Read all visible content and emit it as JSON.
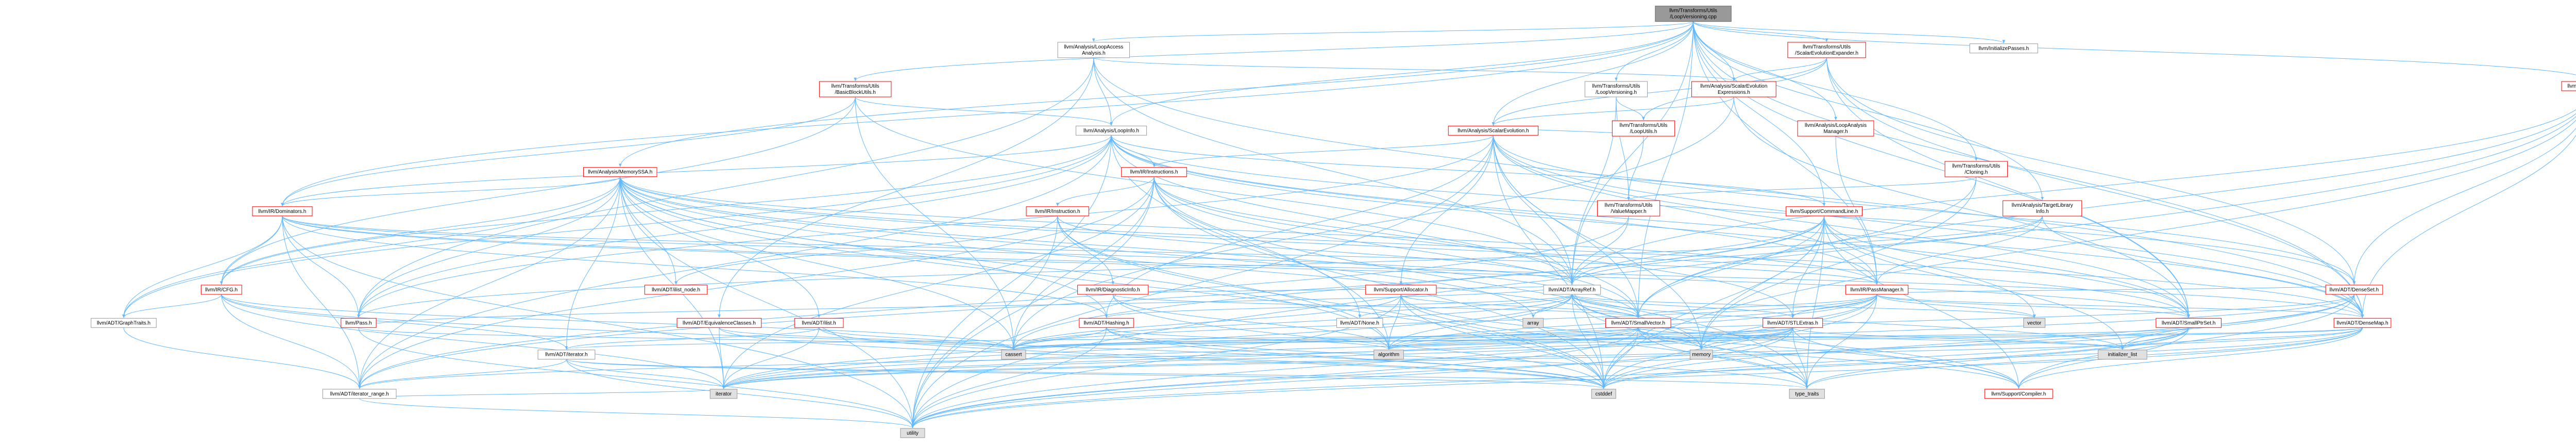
{
  "diagram": {
    "colors": {
      "root_fill": "#999999",
      "root_border": "#666666",
      "red_border": "#ff0000",
      "gray_border": "#999999",
      "node_fill": "#ffffff",
      "leaf_fill": "#e0e0e0",
      "edge_color": "#63b8ff"
    },
    "nodes": [
      {
        "id": "root",
        "lines": [
          "llvm/Transforms/Utils",
          "/LoopVersioning.cpp"
        ],
        "style": "root"
      },
      {
        "id": "laa",
        "lines": [
          "llvm/Analysis/LoopAccess",
          "Analysis.h"
        ],
        "style": "gray"
      },
      {
        "id": "bbu",
        "lines": [
          "llvm/Transforms/Utils",
          "/BasicBlockUtils.h"
        ],
        "style": "red"
      },
      {
        "id": "ms",
        "lines": [
          "llvm/Analysis/MemorySSA.h"
        ],
        "style": "red"
      },
      {
        "id": "li",
        "lines": [
          "llvm/Analysis/LoopInfo.h"
        ],
        "style": "gray"
      },
      {
        "id": "se",
        "lines": [
          "llvm/Analysis/ScalarEvolution.h"
        ],
        "style": "red"
      },
      {
        "id": "see",
        "lines": [
          "llvm/Analysis/ScalarEvolution",
          "Expressions.h"
        ],
        "style": "red"
      },
      {
        "id": "lam",
        "lines": [
          "llvm/Analysis/LoopAnalysis",
          "Manager.h"
        ],
        "style": "red"
      },
      {
        "id": "lv",
        "lines": [
          "llvm/Transforms/Utils",
          "/LoopVersioning.h"
        ],
        "style": "gray"
      },
      {
        "id": "lu",
        "lines": [
          "llvm/Transforms/Utils",
          "/LoopUtils.h"
        ],
        "style": "red"
      },
      {
        "id": "sexp",
        "lines": [
          "llvm/Transforms/Utils",
          "/ScalarEvolutionExpander.h"
        ],
        "style": "red"
      },
      {
        "id": "ip",
        "lines": [
          "llvm/InitializePasses.h"
        ],
        "style": "gray"
      },
      {
        "id": "instrs",
        "lines": [
          "llvm/IR/Instructions.h"
        ],
        "style": "red"
      },
      {
        "id": "instr",
        "lines": [
          "llvm/IR/Instruction.h"
        ],
        "style": "red"
      },
      {
        "id": "clon",
        "lines": [
          "llvm/Transforms/Utils",
          "/Cloning.h"
        ],
        "style": "red"
      },
      {
        "id": "tli",
        "lines": [
          "llvm/Analysis/TargetLibrary",
          "Info.h"
        ],
        "style": "red"
      },
      {
        "id": "mdb",
        "lines": [
          "llvm/IR/MDBuilder.h"
        ],
        "style": "red"
      },
      {
        "id": "dom",
        "lines": [
          "llvm/IR/Dominators.h"
        ],
        "style": "red"
      },
      {
        "id": "cfg",
        "lines": [
          "llvm/IR/CFG.h"
        ],
        "style": "red"
      },
      {
        "id": "gt",
        "lines": [
          "llvm/ADT/GraphTraits.h"
        ],
        "style": "gray"
      },
      {
        "id": "ilnode",
        "lines": [
          "llvm/ADT/ilist_node.h"
        ],
        "style": "red"
      },
      {
        "id": "di",
        "lines": [
          "llvm/IR/DiagnosticInfo.h"
        ],
        "style": "red"
      },
      {
        "id": "vm",
        "lines": [
          "llvm/Transforms/Utils",
          "/ValueMapper.h"
        ],
        "style": "red"
      },
      {
        "id": "cl",
        "lines": [
          "llvm/Support/CommandLine.h"
        ],
        "style": "red"
      },
      {
        "id": "alloc",
        "lines": [
          "llvm/Support/Allocator.h"
        ],
        "style": "red"
      },
      {
        "id": "ar",
        "lines": [
          "llvm/ADT/ArrayRef.h"
        ],
        "style": "gray"
      },
      {
        "id": "pm",
        "lines": [
          "llvm/IR/PassManager.h"
        ],
        "style": "red"
      },
      {
        "id": "ds",
        "lines": [
          "llvm/ADT/DenseSet.h"
        ],
        "style": "red"
      },
      {
        "id": "pass",
        "lines": [
          "llvm/Pass.h"
        ],
        "style": "red"
      },
      {
        "id": "eqc",
        "lines": [
          "llvm/ADT/EquivalenceClasses.h"
        ],
        "style": "red"
      },
      {
        "id": "ilist",
        "lines": [
          "llvm/ADT/ilist.h"
        ],
        "style": "red"
      },
      {
        "id": "hash",
        "lines": [
          "llvm/ADT/Hashing.h"
        ],
        "style": "red"
      },
      {
        "id": "none",
        "lines": [
          "llvm/ADT/None.h"
        ],
        "style": "gray"
      },
      {
        "id": "array",
        "lines": [
          "array"
        ],
        "style": "leaf"
      },
      {
        "id": "sv",
        "lines": [
          "llvm/ADT/SmallVector.h"
        ],
        "style": "red"
      },
      {
        "id": "stl",
        "lines": [
          "llvm/ADT/STLExtras.h"
        ],
        "style": "red"
      },
      {
        "id": "vector",
        "lines": [
          "vector"
        ],
        "style": "leaf"
      },
      {
        "id": "sps",
        "lines": [
          "llvm/ADT/SmallPtrSet.h"
        ],
        "style": "red"
      },
      {
        "id": "dm",
        "lines": [
          "llvm/ADT/DenseMap.h"
        ],
        "style": "red"
      },
      {
        "id": "iter",
        "lines": [
          "llvm/ADT/iterator.h"
        ],
        "style": "gray"
      },
      {
        "id": "cassert",
        "lines": [
          "cassert"
        ],
        "style": "leaf"
      },
      {
        "id": "algo",
        "lines": [
          "algorithm"
        ],
        "style": "leaf"
      },
      {
        "id": "memory",
        "lines": [
          "memory"
        ],
        "style": "leaf"
      },
      {
        "id": "initl",
        "lines": [
          "initializer_list"
        ],
        "style": "leaf"
      },
      {
        "id": "comp",
        "lines": [
          "llvm/Support/Compiler.h"
        ],
        "style": "red"
      },
      {
        "id": "ir",
        "lines": [
          "llvm/ADT/iterator_range.h"
        ],
        "style": "gray"
      },
      {
        "id": "iterator",
        "lines": [
          "iterator"
        ],
        "style": "leaf"
      },
      {
        "id": "cstddef",
        "lines": [
          "cstddef"
        ],
        "style": "leaf"
      },
      {
        "id": "tt",
        "lines": [
          "type_traits"
        ],
        "style": "leaf"
      },
      {
        "id": "utility",
        "lines": [
          "utility"
        ],
        "style": "leaf"
      }
    ],
    "edges": [
      [
        "root",
        "laa"
      ],
      [
        "root",
        "bbu"
      ],
      [
        "root",
        "ms"
      ],
      [
        "root",
        "li"
      ],
      [
        "root",
        "se"
      ],
      [
        "root",
        "see"
      ],
      [
        "root",
        "lam"
      ],
      [
        "root",
        "lv"
      ],
      [
        "root",
        "sexp"
      ],
      [
        "root",
        "ip"
      ],
      [
        "root",
        "clon"
      ],
      [
        "root",
        "tli"
      ],
      [
        "root",
        "mdb"
      ],
      [
        "root",
        "dom"
      ],
      [
        "root",
        "pm"
      ],
      [
        "root",
        "cl"
      ],
      [
        "root",
        "ar"
      ],
      [
        "root",
        "sv"
      ],
      [
        "root",
        "sps"
      ],
      [
        "root",
        "dm"
      ],
      [
        "laa",
        "ar"
      ],
      [
        "laa",
        "li"
      ],
      [
        "laa",
        "see"
      ],
      [
        "laa",
        "pass"
      ],
      [
        "laa",
        "dm"
      ],
      [
        "laa",
        "eqc"
      ],
      [
        "bbu",
        "li"
      ],
      [
        "bbu",
        "cfg"
      ],
      [
        "bbu",
        "dom"
      ],
      [
        "bbu",
        "ar"
      ],
      [
        "bbu",
        "cassert"
      ],
      [
        "lv",
        "lu"
      ],
      [
        "lv",
        "vm"
      ],
      [
        "lv",
        "ar"
      ],
      [
        "lu",
        "se"
      ],
      [
        "lu",
        "vm"
      ],
      [
        "sexp",
        "see"
      ],
      [
        "sexp",
        "se"
      ],
      [
        "sexp",
        "dm"
      ],
      [
        "sexp",
        "sps"
      ],
      [
        "sexp",
        "ds"
      ],
      [
        "sexp",
        "lu"
      ],
      [
        "see",
        "se"
      ],
      [
        "see",
        "sps"
      ],
      [
        "see",
        "cassert"
      ],
      [
        "lam",
        "pm"
      ],
      [
        "li",
        "instrs"
      ],
      [
        "li",
        "pass"
      ],
      [
        "li",
        "dom"
      ],
      [
        "li",
        "cfg"
      ],
      [
        "li",
        "pm"
      ],
      [
        "li",
        "ds"
      ],
      [
        "li",
        "dm"
      ],
      [
        "li",
        "sps"
      ],
      [
        "li",
        "sv"
      ],
      [
        "li",
        "cl"
      ],
      [
        "li",
        "algo"
      ],
      [
        "li",
        "utility"
      ],
      [
        "li",
        "gt"
      ],
      [
        "li",
        "ir"
      ],
      [
        "se",
        "instrs"
      ],
      [
        "se",
        "pm"
      ],
      [
        "se",
        "pass"
      ],
      [
        "se",
        "alloc"
      ],
      [
        "se",
        "ds"
      ],
      [
        "se",
        "dm"
      ],
      [
        "se",
        "sps"
      ],
      [
        "se",
        "sv"
      ],
      [
        "se",
        "ar"
      ],
      [
        "se",
        "hash"
      ],
      [
        "se",
        "memory"
      ],
      [
        "se",
        "cstddef"
      ],
      [
        "se",
        "utility"
      ],
      [
        "ms",
        "dom"
      ],
      [
        "ms",
        "cfg"
      ],
      [
        "ms",
        "pm"
      ],
      [
        "ms",
        "pass"
      ],
      [
        "ms",
        "ilist"
      ],
      [
        "ms",
        "ilnode"
      ],
      [
        "ms",
        "iter"
      ],
      [
        "ms",
        "ir"
      ],
      [
        "ms",
        "gt"
      ],
      [
        "ms",
        "sps"
      ],
      [
        "ms",
        "sv"
      ],
      [
        "ms",
        "dm"
      ],
      [
        "ms",
        "hash"
      ],
      [
        "ms",
        "cassert"
      ],
      [
        "ms",
        "cstddef"
      ],
      [
        "ms",
        "memory"
      ],
      [
        "ms",
        "utility"
      ],
      [
        "ms",
        "algo"
      ],
      [
        "ms",
        "array"
      ],
      [
        "ms",
        "iterator"
      ],
      [
        "instrs",
        "instr"
      ],
      [
        "instrs",
        "ar"
      ],
      [
        "instrs",
        "sv"
      ],
      [
        "instrs",
        "stl"
      ],
      [
        "instrs",
        "ir"
      ],
      [
        "instrs",
        "none"
      ],
      [
        "instrs",
        "iterator"
      ],
      [
        "instrs",
        "cassert"
      ],
      [
        "instrs",
        "cstddef"
      ],
      [
        "instrs",
        "tt"
      ],
      [
        "instrs",
        "utility"
      ],
      [
        "instr",
        "ilnode"
      ],
      [
        "instr",
        "ar"
      ],
      [
        "instr",
        "di"
      ],
      [
        "instr",
        "algo"
      ],
      [
        "instr",
        "cstddef"
      ],
      [
        "instr",
        "utility"
      ],
      [
        "clon",
        "vm"
      ],
      [
        "clon",
        "sv"
      ],
      [
        "clon",
        "memory"
      ],
      [
        "tli",
        "ar"
      ],
      [
        "tli",
        "dm"
      ],
      [
        "tli",
        "pass"
      ],
      [
        "tli",
        "pm"
      ],
      [
        "mdb",
        "ar"
      ],
      [
        "mdb",
        "ds"
      ],
      [
        "mdb",
        "dm"
      ],
      [
        "mdb",
        "sv"
      ],
      [
        "mdb",
        "cstddef"
      ],
      [
        "mdb",
        "utility"
      ],
      [
        "dom",
        "ar"
      ],
      [
        "dom",
        "dm"
      ],
      [
        "dom",
        "pm"
      ],
      [
        "dom",
        "pass"
      ],
      [
        "dom",
        "cfg"
      ],
      [
        "dom",
        "ir"
      ],
      [
        "dom",
        "hash"
      ],
      [
        "dom",
        "gt"
      ],
      [
        "dom",
        "sps"
      ],
      [
        "dom",
        "utility"
      ],
      [
        "cfg",
        "gt"
      ],
      [
        "cfg",
        "ir"
      ],
      [
        "cfg",
        "iter"
      ],
      [
        "cfg",
        "cassert"
      ],
      [
        "cfg",
        "cstddef"
      ],
      [
        "cfg",
        "iterator"
      ],
      [
        "ilist",
        "iter"
      ],
      [
        "ilist",
        "cassert"
      ],
      [
        "ilist",
        "cstddef"
      ],
      [
        "ilist",
        "iterator"
      ],
      [
        "eqc",
        "cassert"
      ],
      [
        "eqc",
        "cstddef"
      ],
      [
        "eqc",
        "iterator"
      ],
      [
        "di",
        "ar"
      ],
      [
        "di",
        "sv"
      ],
      [
        "di",
        "algo"
      ],
      [
        "di",
        "cstddef"
      ],
      [
        "vm",
        "ar"
      ],
      [
        "vm",
        "ir"
      ],
      [
        "cl",
        "ar"
      ],
      [
        "cl",
        "sps"
      ],
      [
        "cl",
        "sv"
      ],
      [
        "cl",
        "stl"
      ],
      [
        "cl",
        "ir"
      ],
      [
        "cl",
        "comp"
      ],
      [
        "cl",
        "cassert"
      ],
      [
        "cl",
        "cstddef"
      ],
      [
        "cl",
        "initl"
      ],
      [
        "cl",
        "vector"
      ],
      [
        "cl",
        "memory"
      ],
      [
        "cl",
        "tt"
      ],
      [
        "alloc",
        "sv"
      ],
      [
        "alloc",
        "comp"
      ],
      [
        "alloc",
        "algo"
      ],
      [
        "alloc",
        "cassert"
      ],
      [
        "alloc",
        "cstddef"
      ],
      [
        "alloc",
        "tt"
      ],
      [
        "alloc",
        "utility"
      ],
      [
        "ar",
        "hash"
      ],
      [
        "ar",
        "none"
      ],
      [
        "ar",
        "sv"
      ],
      [
        "ar",
        "stl"
      ],
      [
        "ar",
        "comp"
      ],
      [
        "ar",
        "algo"
      ],
      [
        "ar",
        "array"
      ],
      [
        "ar",
        "cassert"
      ],
      [
        "ar",
        "cstddef"
      ],
      [
        "ar",
        "initl"
      ],
      [
        "ar",
        "iterator"
      ],
      [
        "ar",
        "memory"
      ],
      [
        "ar",
        "tt"
      ],
      [
        "ar",
        "vector"
      ],
      [
        "pm",
        "stl"
      ],
      [
        "pm",
        "sv"
      ],
      [
        "pm",
        "ds"
      ],
      [
        "pm",
        "dm"
      ],
      [
        "pm",
        "sps"
      ],
      [
        "pm",
        "memory"
      ],
      [
        "pm",
        "vector"
      ],
      [
        "pm",
        "algo"
      ],
      [
        "pm",
        "cassert"
      ],
      [
        "pm",
        "cstddef"
      ],
      [
        "pm",
        "iterator"
      ],
      [
        "pm",
        "list"
      ],
      [
        "pm",
        "tt"
      ],
      [
        "pm",
        "utility"
      ],
      [
        "ds",
        "dm"
      ],
      [
        "ds",
        "comp"
      ],
      [
        "ds",
        "algo"
      ],
      [
        "ds",
        "cstddef"
      ],
      [
        "ds",
        "initl"
      ],
      [
        "ds",
        "iterator"
      ],
      [
        "ds",
        "utility"
      ],
      [
        "pass",
        "cassert"
      ],
      [
        "pass",
        "utility"
      ],
      [
        "pass",
        "ar"
      ],
      [
        "hash",
        "algo"
      ],
      [
        "hash",
        "cassert"
      ],
      [
        "hash",
        "cstddef"
      ],
      [
        "hash",
        "tt"
      ],
      [
        "hash",
        "utility"
      ],
      [
        "sv",
        "comp"
      ],
      [
        "sv",
        "algo"
      ],
      [
        "sv",
        "cassert"
      ],
      [
        "sv",
        "cstddef"
      ],
      [
        "sv",
        "initl"
      ],
      [
        "sv",
        "iterator"
      ],
      [
        "sv",
        "memory"
      ],
      [
        "sv",
        "tt"
      ],
      [
        "sv",
        "utility"
      ],
      [
        "stl",
        "ir"
      ],
      [
        "stl",
        "iter"
      ],
      [
        "stl",
        "comp"
      ],
      [
        "stl",
        "algo"
      ],
      [
        "stl",
        "cassert"
      ],
      [
        "stl",
        "cstddef"
      ],
      [
        "stl",
        "initl"
      ],
      [
        "stl",
        "iterator"
      ],
      [
        "stl",
        "memory"
      ],
      [
        "stl",
        "tt"
      ],
      [
        "stl",
        "utility"
      ],
      [
        "sps",
        "comp"
      ],
      [
        "sps",
        "cassert"
      ],
      [
        "sps",
        "cstddef"
      ],
      [
        "sps",
        "initl"
      ],
      [
        "sps",
        "iterator"
      ],
      [
        "sps",
        "tt"
      ],
      [
        "sps",
        "utility"
      ],
      [
        "dm",
        "comp"
      ],
      [
        "dm",
        "algo"
      ],
      [
        "dm",
        "cassert"
      ],
      [
        "dm",
        "cstddef"
      ],
      [
        "dm",
        "initl"
      ],
      [
        "dm",
        "iterator"
      ],
      [
        "dm",
        "tt"
      ],
      [
        "dm",
        "utility"
      ],
      [
        "iter",
        "ir"
      ],
      [
        "iter",
        "cstddef"
      ],
      [
        "iter",
        "iterator"
      ],
      [
        "iter",
        "tt"
      ],
      [
        "iter",
        "utility"
      ],
      [
        "ir",
        "iterator"
      ],
      [
        "ir",
        "utility"
      ],
      [
        "gt",
        "ir"
      ]
    ]
  }
}
